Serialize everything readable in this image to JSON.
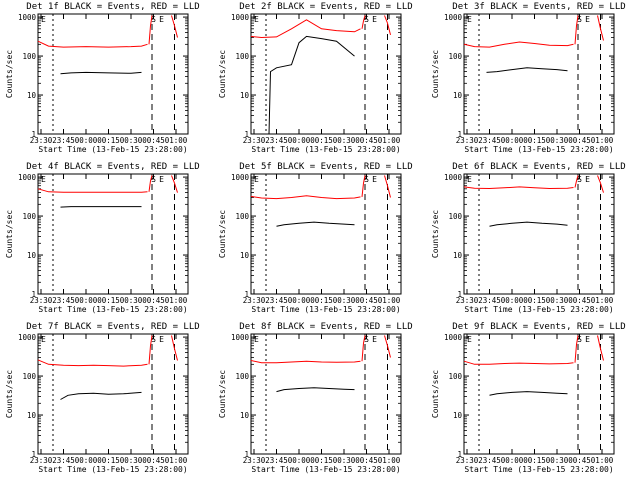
{
  "chart_data": [
    {
      "type": "line",
      "title": "Det 1f BLACK = Events, RED = LLD",
      "xlabel": "Start Time (13-Feb-15 23:28:00)",
      "ylabel": "Counts/sec",
      "x_ticks": [
        "23:30",
        "23:45",
        "00:00",
        "00:15",
        "00:30",
        "00:45",
        "01:00"
      ],
      "y_ticks": [
        "1",
        "10",
        "100",
        "1000"
      ],
      "y_scale": "log",
      "ylim": [
        1,
        1200
      ],
      "markers": [
        "S",
        "E"
      ],
      "series": [
        {
          "name": "LLD",
          "color": "#ff0000",
          "x": [
            "23:28",
            "23:35",
            "23:45",
            "00:00",
            "00:15",
            "00:30",
            "00:37",
            "00:41"
          ],
          "values": [
            240,
            180,
            170,
            175,
            170,
            175,
            180,
            200
          ]
        },
        {
          "name": "Events",
          "color": "#000000",
          "x": [
            "23:43",
            "23:50",
            "00:00",
            "00:15",
            "00:30",
            "00:37"
          ],
          "values": [
            35,
            37,
            38,
            37,
            36,
            38
          ]
        },
        {
          "name": "LLD",
          "color": "#ff0000",
          "x": [
            "00:42",
            "00:43",
            "00:44"
          ],
          "values": [
            200,
            600,
            1100
          ]
        },
        {
          "name": "LLD",
          "color": "#ff0000",
          "x": [
            "00:57",
            "00:59",
            "01:01"
          ],
          "values": [
            1100,
            600,
            300
          ]
        }
      ]
    },
    {
      "type": "line",
      "title": "Det 2f BLACK = Events, RED = LLD",
      "xlabel": "Start Time (13-Feb-15 23:28:00)",
      "ylabel": "Counts/sec",
      "x_ticks": [
        "23:30",
        "23:45",
        "00:00",
        "00:15",
        "00:30",
        "00:45",
        "01:00"
      ],
      "y_ticks": [
        "1",
        "10",
        "100",
        "1000"
      ],
      "y_scale": "log",
      "ylim": [
        1,
        1200
      ],
      "markers": [
        "S",
        "E"
      ],
      "series": [
        {
          "name": "LLD",
          "color": "#ff0000",
          "x": [
            "23:28",
            "23:35",
            "23:45",
            "23:55",
            "00:05",
            "00:15",
            "00:25",
            "00:37",
            "00:41"
          ],
          "values": [
            320,
            300,
            310,
            500,
            850,
            500,
            450,
            420,
            500
          ]
        },
        {
          "name": "Events",
          "color": "#000000",
          "x": [
            "23:40",
            "23:41",
            "23:45",
            "23:55",
            "00:00",
            "00:05",
            "00:15",
            "00:25",
            "00:37"
          ],
          "values": [
            1,
            40,
            50,
            60,
            220,
            320,
            280,
            240,
            100
          ]
        },
        {
          "name": "LLD",
          "color": "#ff0000",
          "x": [
            "00:42",
            "00:43",
            "00:44"
          ],
          "values": [
            500,
            800,
            1100
          ]
        },
        {
          "name": "LLD",
          "color": "#ff0000",
          "x": [
            "00:57",
            "00:59",
            "01:01"
          ],
          "values": [
            1100,
            700,
            350
          ]
        }
      ]
    },
    {
      "type": "line",
      "title": "Det 3f BLACK = Events, RED = LLD",
      "xlabel": "Start Time (13-Feb-15 23:28:00)",
      "ylabel": "Counts/sec",
      "x_ticks": [
        "23:30",
        "23:45",
        "00:00",
        "00:15",
        "00:30",
        "00:45",
        "01:00"
      ],
      "y_ticks": [
        "1",
        "10",
        "100",
        "1000"
      ],
      "y_scale": "log",
      "ylim": [
        1,
        1200
      ],
      "markers": [
        "S",
        "E"
      ],
      "series": [
        {
          "name": "LLD",
          "color": "#ff0000",
          "x": [
            "23:28",
            "23:35",
            "23:45",
            "23:55",
            "00:05",
            "00:15",
            "00:25",
            "00:37",
            "00:41"
          ],
          "values": [
            200,
            175,
            170,
            200,
            230,
            210,
            190,
            185,
            200
          ]
        },
        {
          "name": "Events",
          "color": "#000000",
          "x": [
            "23:43",
            "23:50",
            "00:00",
            "00:10",
            "00:20",
            "00:30",
            "00:37"
          ],
          "values": [
            38,
            40,
            45,
            50,
            47,
            45,
            42
          ]
        },
        {
          "name": "LLD",
          "color": "#ff0000",
          "x": [
            "00:42",
            "00:43",
            "00:44"
          ],
          "values": [
            200,
            600,
            1100
          ]
        },
        {
          "name": "LLD",
          "color": "#ff0000",
          "x": [
            "00:57",
            "00:59",
            "01:01"
          ],
          "values": [
            1100,
            500,
            250
          ]
        }
      ]
    },
    {
      "type": "line",
      "title": "Det 4f BLACK = Events, RED = LLD",
      "xlabel": "Start Time (13-Feb-15 23:28:00)",
      "ylabel": "Counts/sec",
      "x_ticks": [
        "23:30",
        "23:45",
        "00:00",
        "00:15",
        "00:30",
        "00:45",
        "01:00"
      ],
      "y_ticks": [
        "1",
        "10",
        "100",
        "1000"
      ],
      "y_scale": "log",
      "ylim": [
        1,
        1200
      ],
      "markers": [
        "S",
        "E"
      ],
      "series": [
        {
          "name": "LLD",
          "color": "#ff0000",
          "x": [
            "23:28",
            "23:35",
            "23:45",
            "00:00",
            "00:15",
            "00:30",
            "00:37",
            "00:41"
          ],
          "values": [
            500,
            420,
            410,
            410,
            410,
            410,
            410,
            420
          ]
        },
        {
          "name": "Events",
          "color": "#000000",
          "x": [
            "23:43",
            "23:50",
            "00:00",
            "00:15",
            "00:30",
            "00:37"
          ],
          "values": [
            170,
            175,
            175,
            175,
            175,
            175
          ]
        },
        {
          "name": "LLD",
          "color": "#ff0000",
          "x": [
            "00:42",
            "00:43",
            "00:44"
          ],
          "values": [
            420,
            800,
            1100
          ]
        },
        {
          "name": "LLD",
          "color": "#ff0000",
          "x": [
            "00:57",
            "00:59",
            "01:01"
          ],
          "values": [
            1100,
            700,
            400
          ]
        }
      ]
    },
    {
      "type": "line",
      "title": "Det 5f BLACK = Events, RED = LLD",
      "xlabel": "Start Time (13-Feb-15 23:28:00)",
      "ylabel": "Counts/sec",
      "x_ticks": [
        "23:30",
        "23:45",
        "00:00",
        "00:15",
        "00:30",
        "00:45",
        "01:00"
      ],
      "y_ticks": [
        "1",
        "10",
        "100",
        "1000"
      ],
      "y_scale": "log",
      "ylim": [
        1,
        1200
      ],
      "markers": [
        "S",
        "E"
      ],
      "series": [
        {
          "name": "LLD",
          "color": "#ff0000",
          "x": [
            "23:28",
            "23:35",
            "23:45",
            "23:55",
            "00:05",
            "00:15",
            "00:25",
            "00:37",
            "00:41"
          ],
          "values": [
            320,
            290,
            280,
            300,
            330,
            300,
            280,
            290,
            310
          ]
        },
        {
          "name": "Events",
          "color": "#000000",
          "x": [
            "23:45",
            "23:50",
            "00:00",
            "00:10",
            "00:20",
            "00:30",
            "00:37"
          ],
          "values": [
            55,
            60,
            65,
            70,
            65,
            62,
            60
          ]
        },
        {
          "name": "LLD",
          "color": "#ff0000",
          "x": [
            "00:42",
            "00:43",
            "00:44"
          ],
          "values": [
            310,
            700,
            1100
          ]
        },
        {
          "name": "LLD",
          "color": "#ff0000",
          "x": [
            "00:57",
            "00:59",
            "01:01"
          ],
          "values": [
            1100,
            600,
            300
          ]
        }
      ]
    },
    {
      "type": "line",
      "title": "Det 6f BLACK = Events, RED = LLD",
      "xlabel": "Start Time (13-Feb-15 23:28:00)",
      "ylabel": "Counts/sec",
      "x_ticks": [
        "23:30",
        "23:45",
        "00:00",
        "00:15",
        "00:30",
        "00:45",
        "01:00"
      ],
      "y_ticks": [
        "1",
        "10",
        "100",
        "1000"
      ],
      "y_scale": "log",
      "ylim": [
        1,
        1200
      ],
      "markers": [
        "S",
        "E"
      ],
      "series": [
        {
          "name": "LLD",
          "color": "#ff0000",
          "x": [
            "23:28",
            "23:35",
            "23:45",
            "23:55",
            "00:05",
            "00:15",
            "00:25",
            "00:37",
            "00:41"
          ],
          "values": [
            560,
            520,
            510,
            530,
            560,
            530,
            510,
            520,
            540
          ]
        },
        {
          "name": "Events",
          "color": "#000000",
          "x": [
            "23:45",
            "23:50",
            "00:00",
            "00:10",
            "00:20",
            "00:30",
            "00:37"
          ],
          "values": [
            55,
            60,
            65,
            70,
            65,
            62,
            58
          ]
        },
        {
          "name": "LLD",
          "color": "#ff0000",
          "x": [
            "00:42",
            "00:43",
            "00:44"
          ],
          "values": [
            540,
            800,
            1100
          ]
        },
        {
          "name": "LLD",
          "color": "#ff0000",
          "x": [
            "00:57",
            "00:59",
            "01:01"
          ],
          "values": [
            1100,
            700,
            400
          ]
        }
      ]
    },
    {
      "type": "line",
      "title": "Det 7f BLACK = Events, RED = LLD",
      "xlabel": "Start Time (13-Feb-15 23:28:00)",
      "ylabel": "Counts/sec",
      "x_ticks": [
        "23:30",
        "23:45",
        "00:00",
        "00:15",
        "00:30",
        "00:45",
        "01:00"
      ],
      "y_ticks": [
        "1",
        "10",
        "100",
        "1000"
      ],
      "y_scale": "log",
      "ylim": [
        1,
        1200
      ],
      "markers": [
        "S",
        "E"
      ],
      "series": [
        {
          "name": "LLD",
          "color": "#ff0000",
          "x": [
            "23:28",
            "23:35",
            "23:45",
            "23:55",
            "00:05",
            "00:15",
            "00:25",
            "00:37",
            "00:41"
          ],
          "values": [
            260,
            200,
            190,
            185,
            190,
            185,
            180,
            190,
            200
          ]
        },
        {
          "name": "Events",
          "color": "#000000",
          "x": [
            "23:43",
            "23:48",
            "23:55",
            "00:05",
            "00:15",
            "00:25",
            "00:37"
          ],
          "values": [
            25,
            32,
            35,
            36,
            34,
            35,
            38
          ]
        },
        {
          "name": "LLD",
          "color": "#ff0000",
          "x": [
            "00:42",
            "00:43",
            "00:44"
          ],
          "values": [
            200,
            600,
            1100
          ]
        },
        {
          "name": "LLD",
          "color": "#ff0000",
          "x": [
            "00:57",
            "00:59",
            "01:01"
          ],
          "values": [
            1100,
            500,
            250
          ]
        }
      ]
    },
    {
      "type": "line",
      "title": "Det 8f BLACK = Events, RED = LLD",
      "xlabel": "Start Time (13-Feb-15 23:28:00)",
      "ylabel": "Counts/sec",
      "x_ticks": [
        "23:30",
        "23:45",
        "00:00",
        "00:15",
        "00:30",
        "00:45",
        "01:00"
      ],
      "y_ticks": [
        "1",
        "10",
        "100",
        "1000"
      ],
      "y_scale": "log",
      "ylim": [
        1,
        1200
      ],
      "markers": [
        "S",
        "E"
      ],
      "series": [
        {
          "name": "LLD",
          "color": "#ff0000",
          "x": [
            "23:28",
            "23:35",
            "23:45",
            "23:55",
            "00:05",
            "00:15",
            "00:25",
            "00:37",
            "00:41"
          ],
          "values": [
            250,
            220,
            220,
            230,
            240,
            230,
            225,
            230,
            240
          ]
        },
        {
          "name": "Events",
          "color": "#000000",
          "x": [
            "23:45",
            "23:50",
            "00:00",
            "00:10",
            "00:20",
            "00:30",
            "00:37"
          ],
          "values": [
            40,
            45,
            48,
            50,
            48,
            46,
            45
          ]
        },
        {
          "name": "LLD",
          "color": "#ff0000",
          "x": [
            "00:42",
            "00:43",
            "00:44"
          ],
          "values": [
            240,
            700,
            1100
          ]
        },
        {
          "name": "LLD",
          "color": "#ff0000",
          "x": [
            "00:57",
            "00:59",
            "01:01"
          ],
          "values": [
            1100,
            600,
            300
          ]
        }
      ]
    },
    {
      "type": "line",
      "title": "Det 9f BLACK = Events, RED = LLD",
      "xlabel": "Start Time (13-Feb-15 23:28:00)",
      "ylabel": "Counts/sec",
      "x_ticks": [
        "23:30",
        "23:45",
        "00:00",
        "00:15",
        "00:30",
        "00:45",
        "01:00"
      ],
      "y_ticks": [
        "1",
        "10",
        "100",
        "1000"
      ],
      "y_scale": "log",
      "ylim": [
        1,
        1200
      ],
      "markers": [
        "S",
        "E"
      ],
      "series": [
        {
          "name": "LLD",
          "color": "#ff0000",
          "x": [
            "23:28",
            "23:35",
            "23:45",
            "23:55",
            "00:05",
            "00:15",
            "00:25",
            "00:37",
            "00:41"
          ],
          "values": [
            240,
            200,
            200,
            210,
            215,
            210,
            205,
            210,
            220
          ]
        },
        {
          "name": "Events",
          "color": "#000000",
          "x": [
            "23:45",
            "23:50",
            "00:00",
            "00:10",
            "00:20",
            "00:30",
            "00:37"
          ],
          "values": [
            32,
            35,
            38,
            40,
            38,
            36,
            35
          ]
        },
        {
          "name": "LLD",
          "color": "#ff0000",
          "x": [
            "00:42",
            "00:43",
            "00:44"
          ],
          "values": [
            220,
            650,
            1100
          ]
        },
        {
          "name": "LLD",
          "color": "#ff0000",
          "x": [
            "00:57",
            "00:59",
            "01:01"
          ],
          "values": [
            1100,
            500,
            250
          ]
        }
      ]
    }
  ]
}
